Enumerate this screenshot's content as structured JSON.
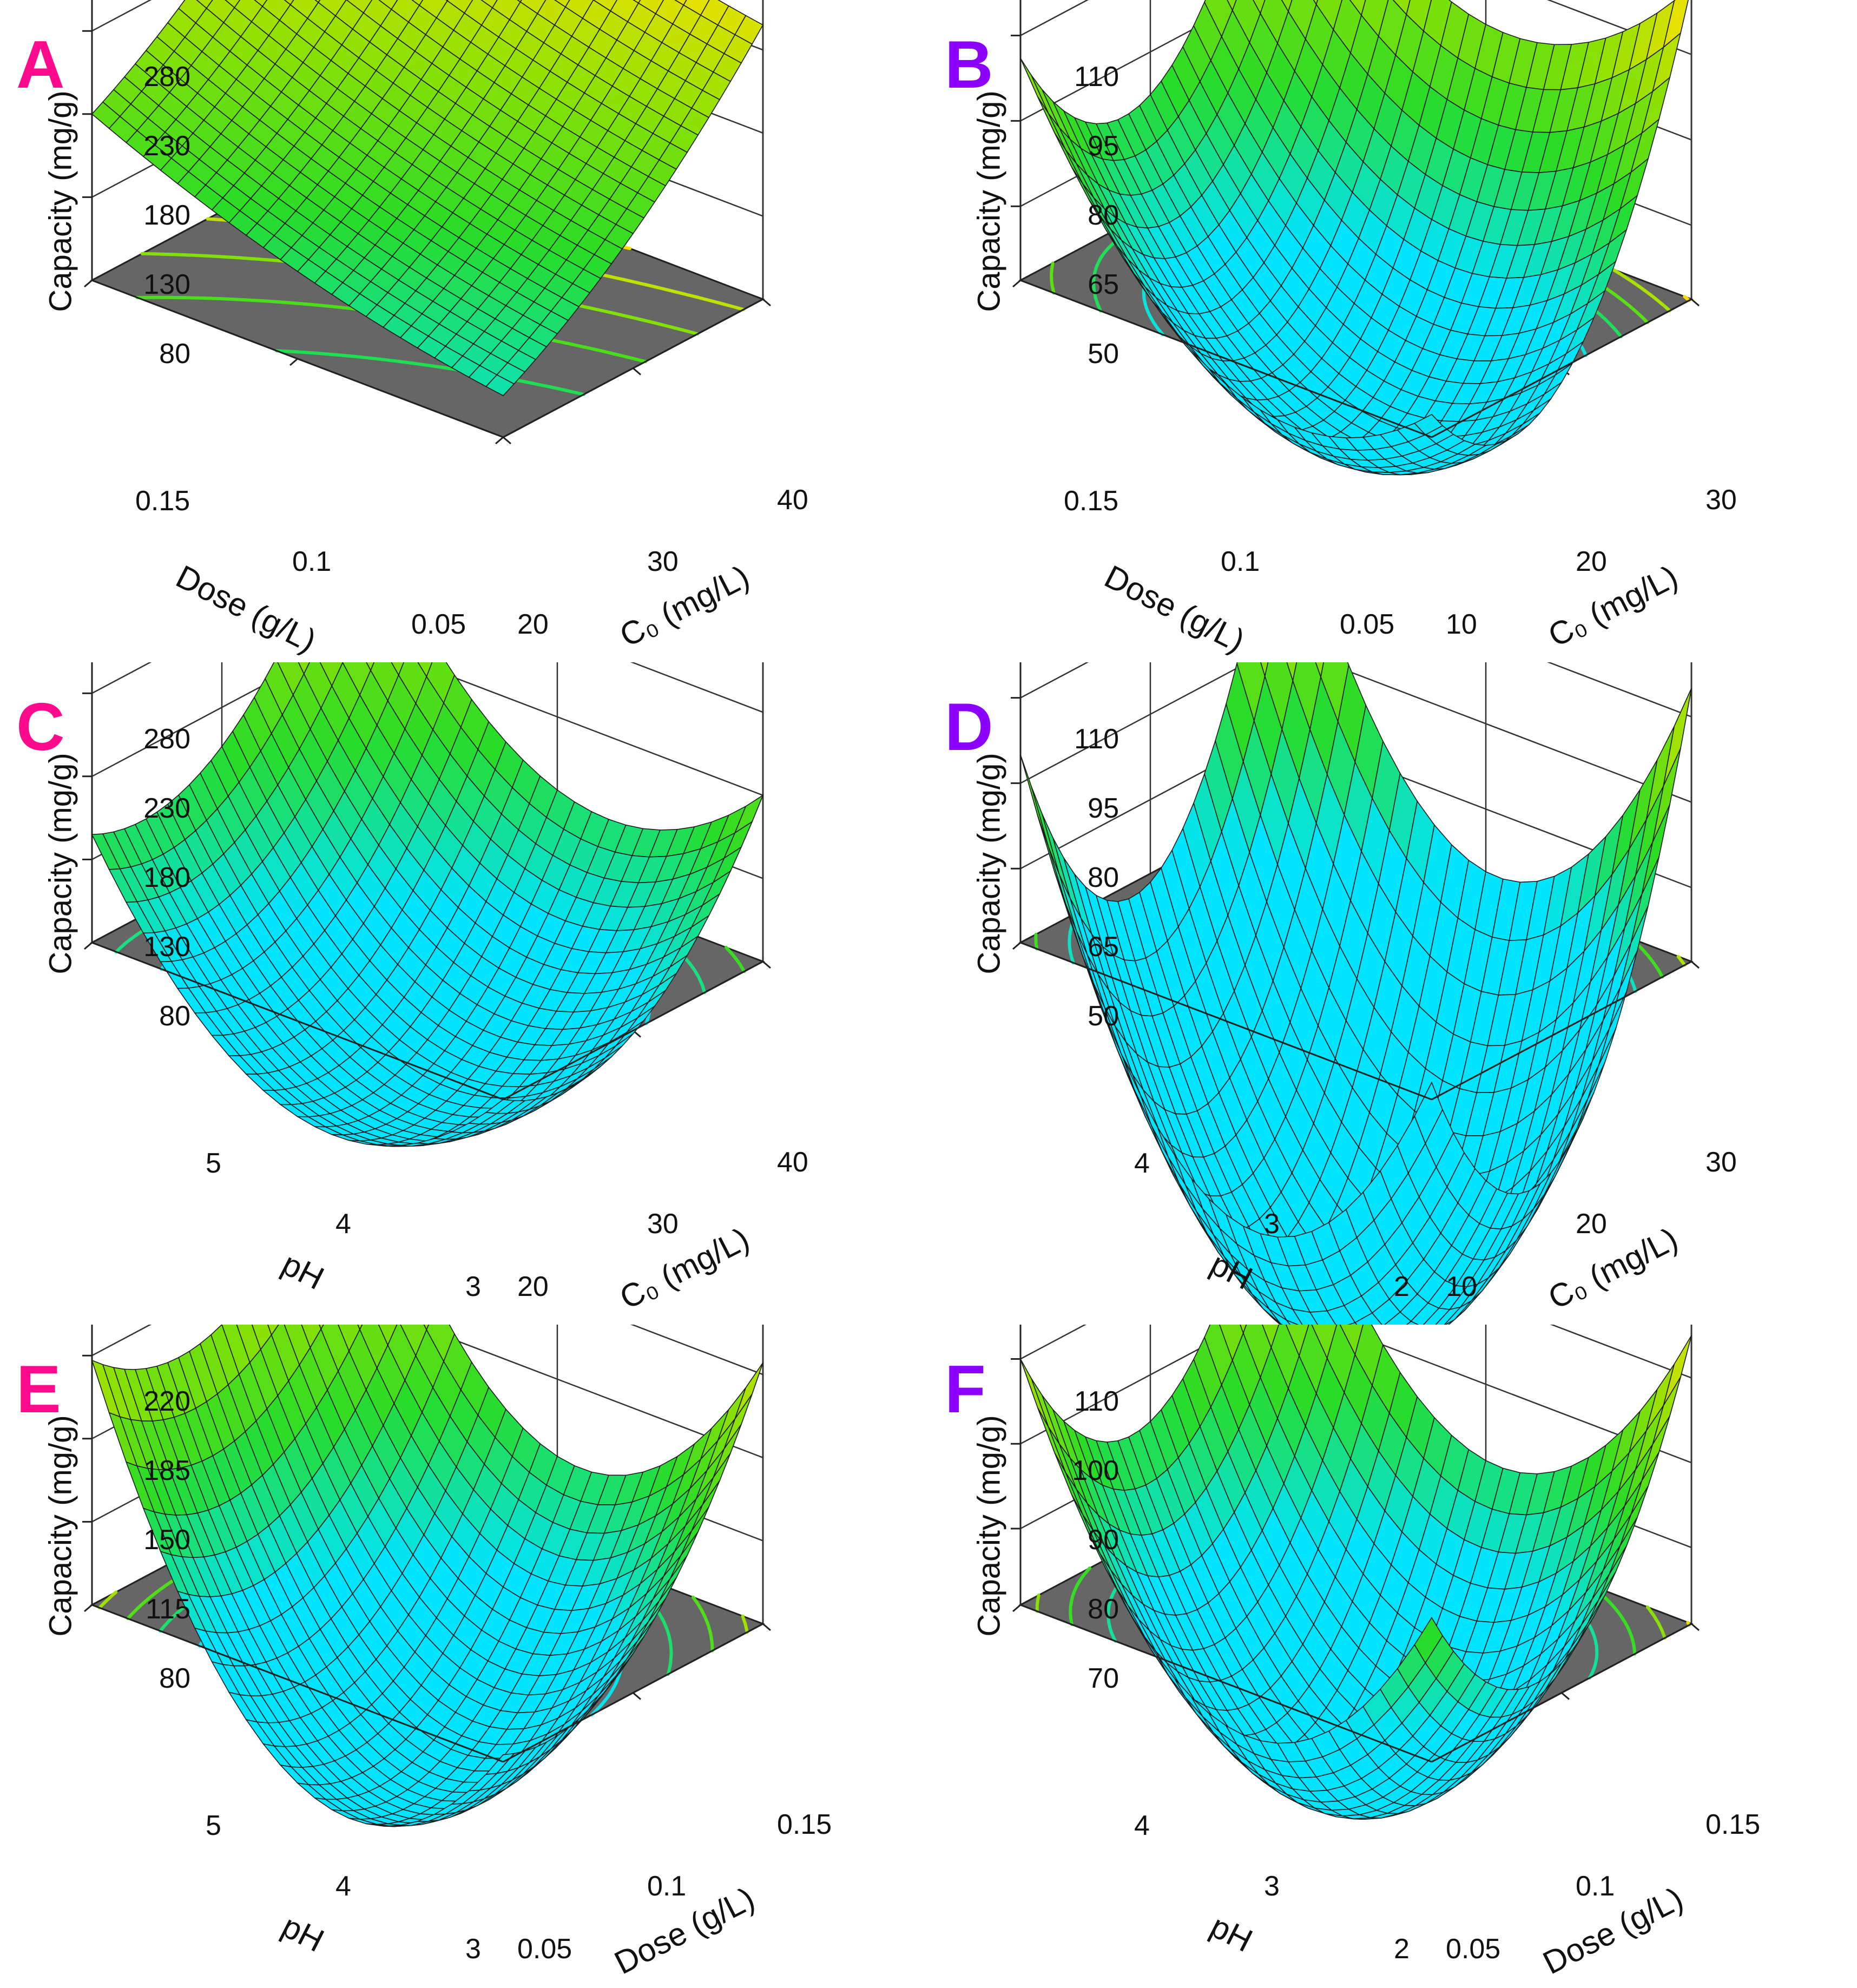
{
  "figure": {
    "panels": [
      {
        "letter": "A",
        "letter_color": "#ff0a8c",
        "z_label": "Capacity (mg/g)",
        "z_ticks": [
          "280",
          "230",
          "180",
          "130",
          "80"
        ],
        "left_axis": {
          "label": "Dose (g/L)",
          "ticks": [
            "0.15",
            "0.1",
            "0.05"
          ]
        },
        "right_axis": {
          "label": "C₀ (mg/L)",
          "ticks": [
            "20",
            "30",
            "40"
          ]
        }
      },
      {
        "letter": "B",
        "letter_color": "#8b00ff",
        "z_label": "Capacity (mg/g)",
        "z_ticks": [
          "110",
          "95",
          "80",
          "65",
          "50"
        ],
        "left_axis": {
          "label": "Dose (g/L)",
          "ticks": [
            "0.15",
            "0.1",
            "0.05"
          ]
        },
        "right_axis": {
          "label": "C₀ (mg/L)",
          "ticks": [
            "10",
            "20",
            "30"
          ]
        }
      },
      {
        "letter": "C",
        "letter_color": "#ff0a8c",
        "z_label": "Capacity (mg/g)",
        "z_ticks": [
          "280",
          "230",
          "180",
          "130",
          "80"
        ],
        "left_axis": {
          "label": "pH",
          "ticks": [
            "5",
            "4",
            "3"
          ]
        },
        "right_axis": {
          "label": "C₀ (mg/L)",
          "ticks": [
            "20",
            "30",
            "40"
          ]
        }
      },
      {
        "letter": "D",
        "letter_color": "#8b00ff",
        "z_label": "Capacity (mg/g)",
        "z_ticks": [
          "110",
          "95",
          "80",
          "65",
          "50"
        ],
        "left_axis": {
          "label": "pH",
          "ticks": [
            "4",
            "3",
            "2"
          ]
        },
        "right_axis": {
          "label": "C₀ (mg/L)",
          "ticks": [
            "10",
            "20",
            "30"
          ]
        }
      },
      {
        "letter": "E",
        "letter_color": "#ff0a8c",
        "z_label": "Capacity (mg/g)",
        "z_ticks": [
          "220",
          "185",
          "150",
          "115",
          "80"
        ],
        "left_axis": {
          "label": "pH",
          "ticks": [
            "5",
            "4",
            "3"
          ]
        },
        "right_axis": {
          "label": "Dose (g/L)",
          "ticks": [
            "0.05",
            "0.1",
            "0.15"
          ]
        }
      },
      {
        "letter": "F",
        "letter_color": "#8b00ff",
        "z_label": "Capacity (mg/g)",
        "z_ticks": [
          "110",
          "100",
          "90",
          "80",
          "70"
        ],
        "left_axis": {
          "label": "pH",
          "ticks": [
            "4",
            "3",
            "2"
          ]
        },
        "right_axis": {
          "label": "Dose (g/L)",
          "ticks": [
            "0.05",
            "0.1",
            "0.15"
          ]
        }
      }
    ]
  },
  "chart_data": [
    {
      "type": "surface3d",
      "title": "A",
      "xlabel": "Dose (g/L)",
      "ylabel": "C₀ (mg/L)",
      "zlabel": "Capacity (mg/g)",
      "x_range": [
        0.05,
        0.15
      ],
      "y_range": [
        20,
        40
      ],
      "z_range": [
        30,
        280
      ],
      "colormap": "green-yellow-red",
      "corner_values": {
        "at_xmin_ymin": 55,
        "at_xmax_ymin": 130,
        "at_xmin_ymax": 195,
        "at_xmax_ymax": 275
      },
      "curvature": {
        "x": -10,
        "y": -14
      },
      "z_ticks": [
        80,
        130,
        180,
        230,
        280
      ],
      "x_ticks": [
        0.05,
        0.1,
        0.15
      ],
      "y_ticks": [
        20,
        30,
        40
      ]
    },
    {
      "type": "surface3d",
      "title": "B",
      "xlabel": "Dose (g/L)",
      "ylabel": "C₀ (mg/L)",
      "zlabel": "Capacity (mg/g)",
      "x_range": [
        0.05,
        0.15
      ],
      "y_range": [
        10,
        30
      ],
      "z_range": [
        37,
        110
      ],
      "colormap": "green-yellow-red",
      "corner_values": {
        "at_xmin_ymin": 41,
        "at_xmax_ymin": 76,
        "at_xmin_ymax": 92,
        "at_xmax_ymax": 103
      },
      "curvature": {
        "x": -26,
        "y": -32
      },
      "z_ticks": [
        50,
        65,
        80,
        95,
        110
      ],
      "x_ticks": [
        0.05,
        0.1,
        0.15
      ],
      "y_ticks": [
        10,
        20,
        30
      ]
    },
    {
      "type": "surface3d",
      "title": "C",
      "xlabel": "pH",
      "ylabel": "C₀ (mg/L)",
      "zlabel": "Capacity (mg/g)",
      "x_range": [
        3,
        5
      ],
      "y_range": [
        20,
        40
      ],
      "z_range": [
        30,
        280
      ],
      "colormap": "green-yellow-red",
      "corner_values": {
        "at_xmin_ymin": 30,
        "at_xmax_ymin": 95,
        "at_xmin_ymax": 130,
        "at_xmax_ymax": 222
      },
      "curvature": {
        "x": -90,
        "y": -52
      },
      "z_ticks": [
        80,
        130,
        180,
        230,
        280
      ],
      "x_ticks": [
        3,
        4,
        5
      ],
      "y_ticks": [
        20,
        30,
        40
      ]
    },
    {
      "type": "surface3d",
      "title": "D",
      "xlabel": "pH",
      "ylabel": "C₀ (mg/L)",
      "zlabel": "Capacity (mg/g)",
      "x_range": [
        2,
        4
      ],
      "y_range": [
        10,
        30
      ],
      "z_range": [
        37,
        110
      ],
      "colormap": "green-yellow-red",
      "corner_values": {
        "at_xmin_ymin": 40,
        "at_xmax_ymin": 70,
        "at_xmin_ymax": 85,
        "at_xmax_ymax": 97
      },
      "curvature": {
        "x": -52,
        "y": -48
      },
      "z_ticks": [
        50,
        65,
        80,
        95,
        110
      ],
      "x_ticks": [
        2,
        3,
        4
      ],
      "y_ticks": [
        10,
        20,
        30
      ]
    },
    {
      "type": "surface3d",
      "title": "E",
      "xlabel": "pH",
      "ylabel": "Dose (g/L)",
      "zlabel": "Capacity (mg/g)",
      "x_range": [
        3,
        5
      ],
      "y_range": [
        0.05,
        0.15
      ],
      "z_range": [
        45,
        220
      ],
      "colormap": "green-yellow-red",
      "corner_values": {
        "at_xmin_ymin": 48,
        "at_xmax_ymin": 148,
        "at_xmin_ymax": 155,
        "at_xmax_ymax": 200
      },
      "curvature": {
        "x": -95,
        "y": -40
      },
      "z_ticks": [
        80,
        115,
        150,
        185,
        220
      ],
      "x_ticks": [
        3,
        4,
        5
      ],
      "y_ticks": [
        0.05,
        0.1,
        0.15
      ]
    },
    {
      "type": "surface3d",
      "title": "F",
      "xlabel": "pH",
      "ylabel": "Dose (g/L)",
      "zlabel": "Capacity (mg/g)",
      "x_range": [
        2,
        4
      ],
      "y_range": [
        0.05,
        0.15
      ],
      "z_range": [
        61,
        110
      ],
      "colormap": "green-yellow-red",
      "corner_values": {
        "at_xmin_ymin": 78,
        "at_xmax_ymin": 90,
        "at_xmin_ymax": 95,
        "at_xmax_ymax": 103
      },
      "curvature": {
        "x": -28,
        "y": -22
      },
      "z_ticks": [
        70,
        80,
        90,
        100,
        110
      ],
      "x_ticks": [
        2,
        3,
        4
      ],
      "y_ticks": [
        0.05,
        0.1,
        0.15
      ]
    }
  ]
}
